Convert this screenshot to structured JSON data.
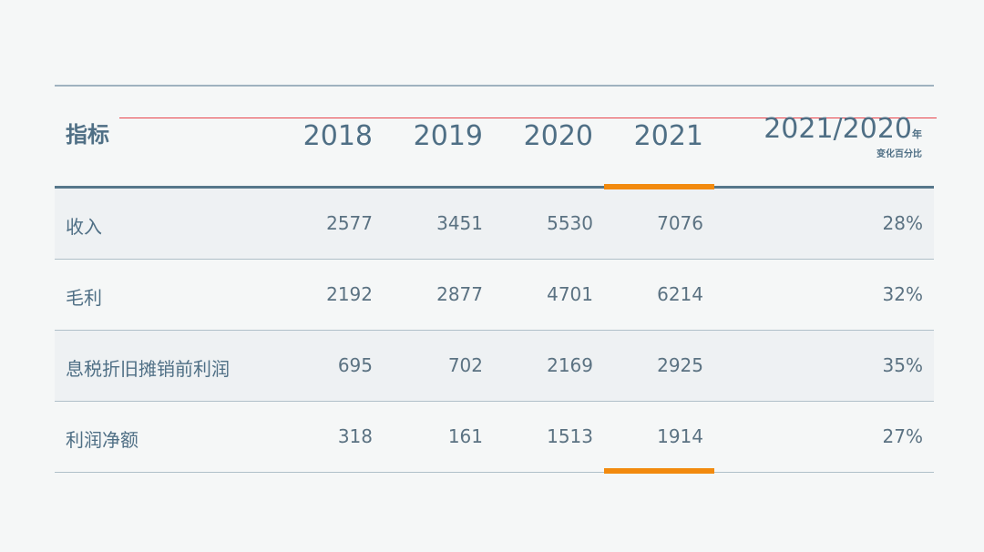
{
  "header": {
    "label": "指标",
    "years": [
      "2018",
      "2019",
      "2020",
      "2021"
    ],
    "ratio": "2021/2020",
    "ratio_suffix": "年",
    "ratio_sub": "变化百分比"
  },
  "rows": [
    {
      "label": "收入",
      "values": [
        "2577",
        "3451",
        "5530",
        "7076"
      ],
      "pct": "28%"
    },
    {
      "label": "毛利",
      "values": [
        "2192",
        "2877",
        "4701",
        "6214"
      ],
      "pct": "32%"
    },
    {
      "label": "息税折旧摊销前利润",
      "values": [
        "695",
        "702",
        "2169",
        "2925"
      ],
      "pct": "35%"
    },
    {
      "label": "利润净额",
      "values": [
        "318",
        "161",
        "1513",
        "1914"
      ],
      "pct": "27%"
    }
  ],
  "colors": {
    "header_text": "#4f6f85",
    "highlight": "#f28a0e",
    "shade": "#eef1f3"
  }
}
